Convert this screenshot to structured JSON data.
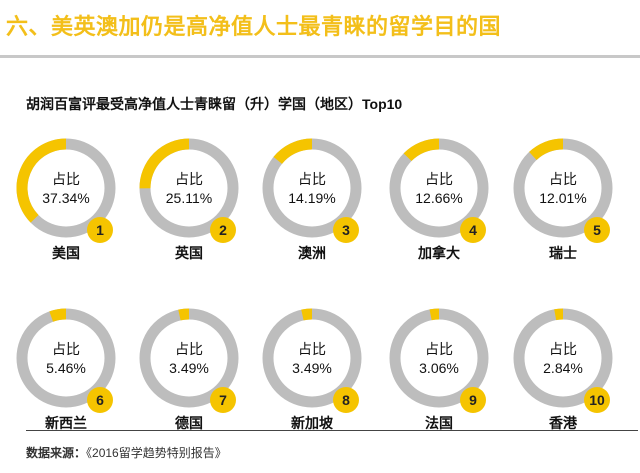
{
  "heading": "六、美英澳加仍是高净值人士最青睐的留学目的国",
  "source": {
    "label": "数据来源：",
    "text": "《2016留学趋势特别报告》"
  },
  "colors": {
    "accent": "#f5c400",
    "ring": "#bdbdbd",
    "rank_badge": "#f5c400"
  },
  "chart_data": {
    "type": "donut-grid",
    "title": "胡润百富评最受高净值人士青睐留（升）学国（地区）Top10",
    "value_label": "占比",
    "unit": "%",
    "items": [
      {
        "rank": "1",
        "country": "美国",
        "value": 37.34,
        "display": "37.34%"
      },
      {
        "rank": "2",
        "country": "英国",
        "value": 25.11,
        "display": "25.11%"
      },
      {
        "rank": "3",
        "country": "澳洲",
        "value": 14.19,
        "display": "14.19%"
      },
      {
        "rank": "4",
        "country": "加拿大",
        "value": 12.66,
        "display": "12.66%"
      },
      {
        "rank": "5",
        "country": "瑞士",
        "value": 12.01,
        "display": "12.01%"
      },
      {
        "rank": "6",
        "country": "新西兰",
        "value": 5.46,
        "display": "5.46%"
      },
      {
        "rank": "7",
        "country": "德国",
        "value": 3.49,
        "display": "3.49%"
      },
      {
        "rank": "8",
        "country": "新加坡",
        "value": 3.49,
        "display": "3.49%"
      },
      {
        "rank": "9",
        "country": "法国",
        "value": 3.06,
        "display": "3.06%"
      },
      {
        "rank": "10",
        "country": "香港",
        "value": 2.84,
        "display": "2.84%"
      }
    ]
  }
}
